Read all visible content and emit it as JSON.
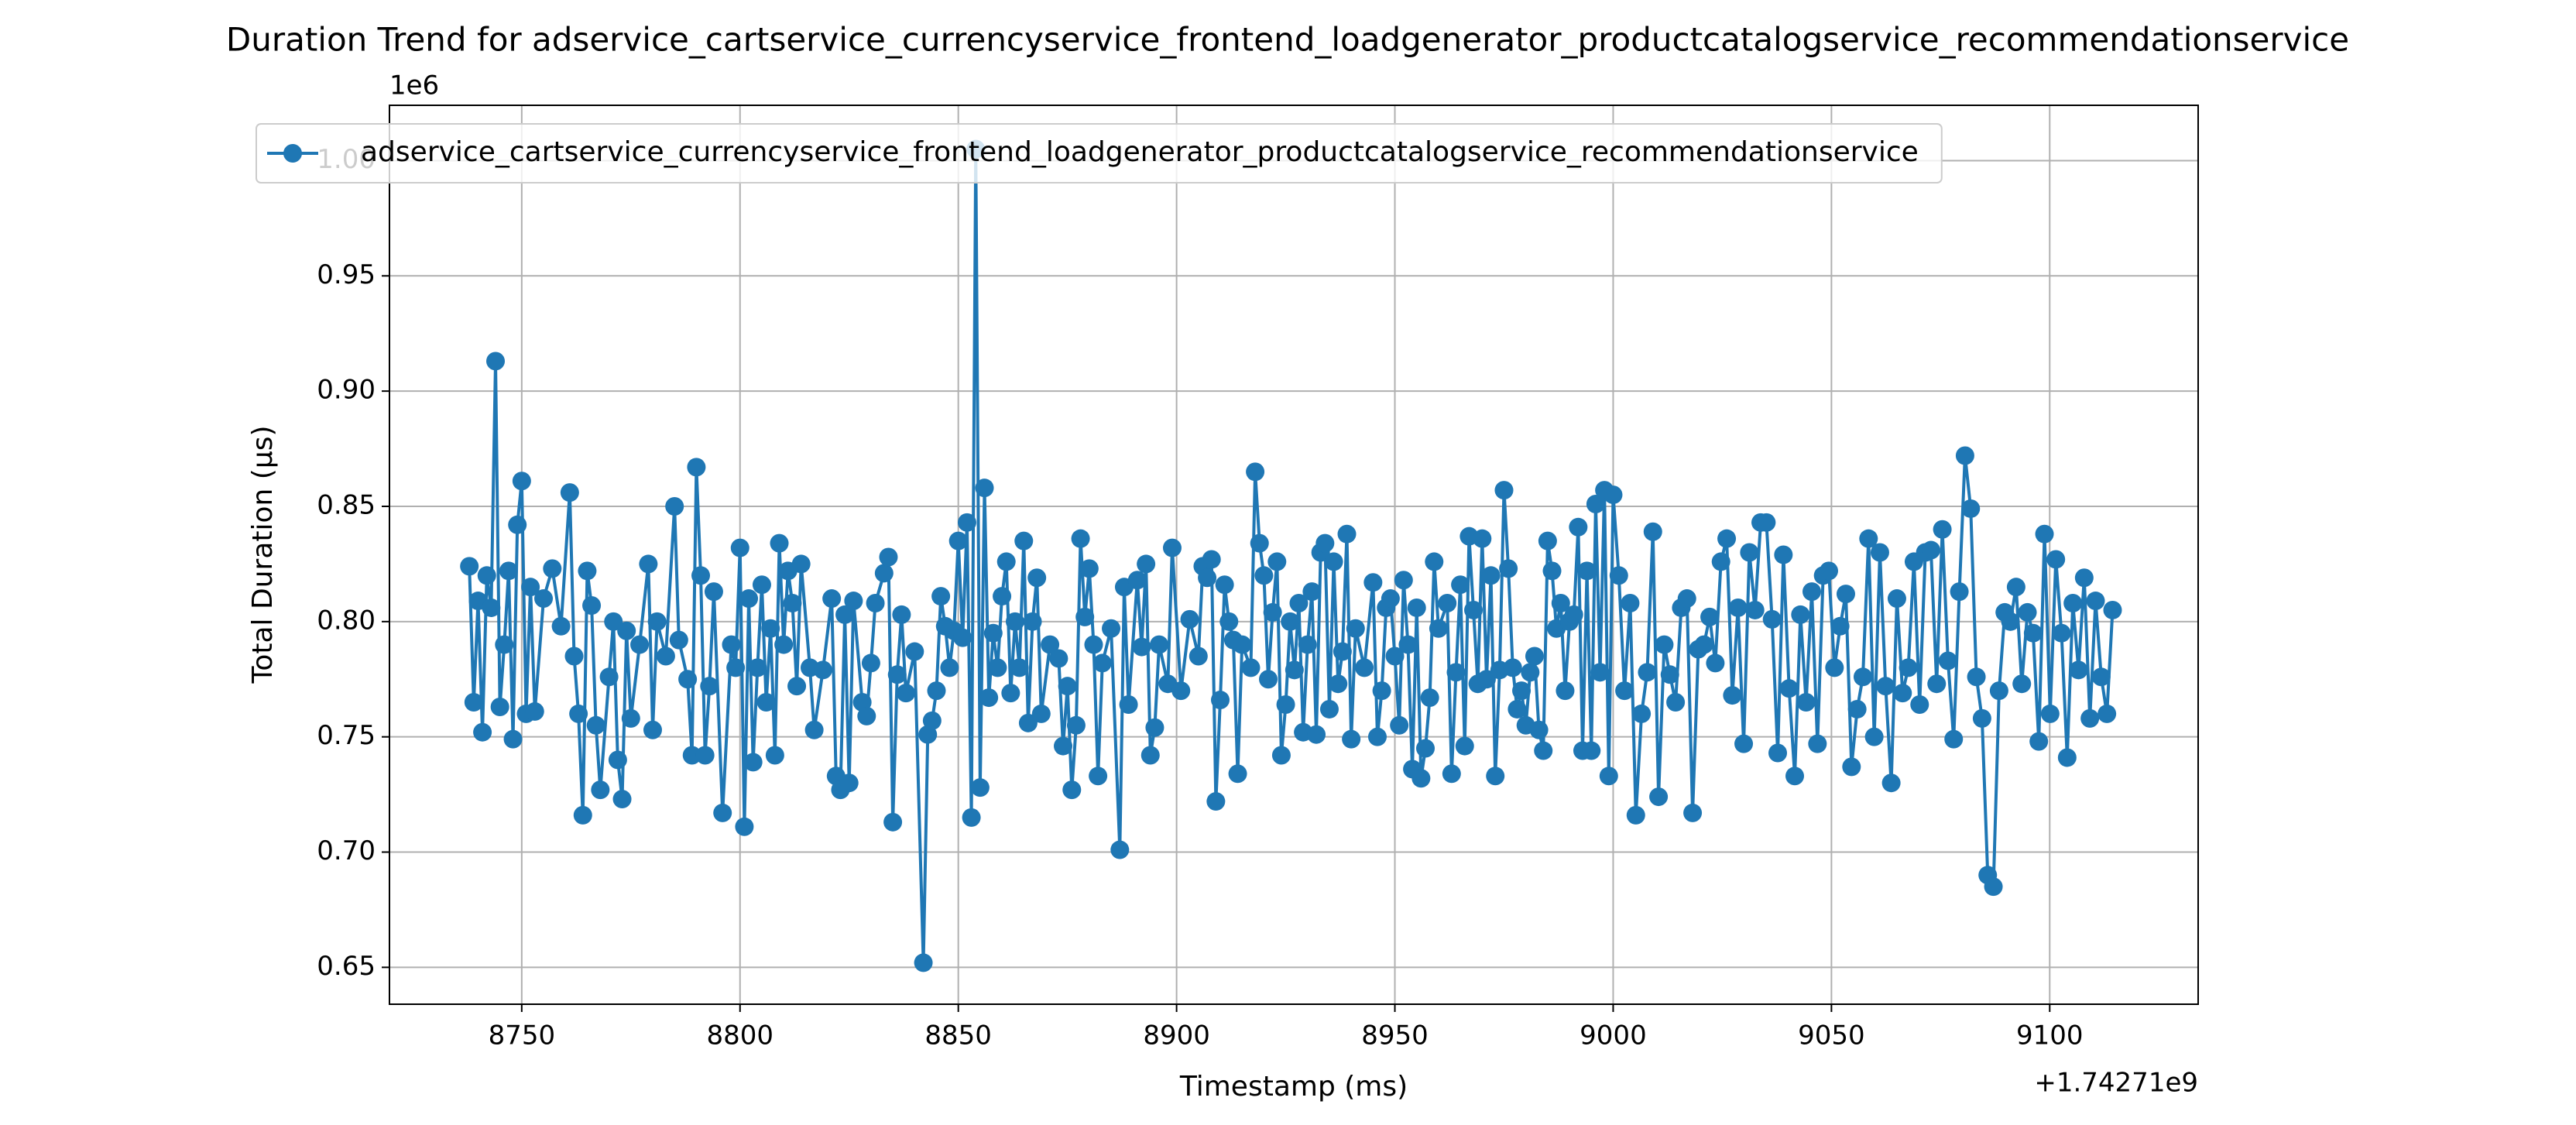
{
  "chart_data": {
    "type": "line",
    "title": "Duration Trend for adservice_cartservice_currencyservice_frontend_loadgenerator_productcatalogservice_recommendationservice",
    "xlabel": "Timestamp (ms)",
    "ylabel": "Total Duration (µs)",
    "x_offset_label": "+1.74271e9",
    "y_offset_label": "1e6",
    "xlim": [
      8719.7,
      9134
    ],
    "ylim": [
      0.634,
      1.024
    ],
    "xticks": [
      8750,
      8800,
      8850,
      8900,
      8950,
      9000,
      9050,
      9100
    ],
    "yticks": [
      0.65,
      {
        "value": 0.7,
        "label": "0.70"
      },
      0.75,
      {
        "value": 0.8,
        "label": "0.80"
      },
      0.85,
      {
        "value": 0.9,
        "label": "0.90"
      },
      0.95,
      {
        "value": 1,
        "label": "1.00"
      }
    ],
    "grid": true,
    "legend": "upper left",
    "x": [
      8738,
      8739,
      8740,
      8741,
      8742,
      8743,
      8744,
      8745,
      8746,
      8747,
      8748,
      8749,
      8750,
      8751,
      8752,
      8753,
      8755,
      8757,
      8759,
      8761,
      8762,
      8763,
      8764,
      8765,
      8766,
      8767,
      8768,
      8770,
      8771,
      8772,
      8773,
      8774,
      8775,
      8777,
      8779,
      8780,
      8781,
      8783,
      8785,
      8786,
      8788,
      8789,
      8790,
      8791,
      8792,
      8793,
      8794,
      8796,
      8798,
      8799,
      8800,
      8801,
      8802,
      8803,
      8804,
      8805,
      8806,
      8807,
      8808,
      8809,
      8810,
      8811,
      8812,
      8813,
      8814,
      8816,
      8817,
      8819,
      8821,
      8822,
      8823,
      8824,
      8825,
      8826,
      8828,
      8829,
      8830,
      8831,
      8833,
      8834,
      8835,
      8836,
      8837,
      8838,
      8840,
      8842,
      8843,
      8844,
      8845,
      8846,
      8847,
      8848,
      8849,
      8850,
      8851,
      8852,
      8853,
      8854,
      8855,
      8856,
      8857,
      8858,
      8859,
      8860,
      8861,
      8862,
      8863,
      8864,
      8865,
      8866,
      8867,
      8868,
      8869,
      8871,
      8873,
      8874,
      8875,
      8876,
      8877,
      8878,
      8879,
      8880,
      8881,
      8882,
      8883,
      8885,
      8887,
      8888,
      8889,
      8891,
      8892,
      8893,
      8894,
      8895,
      8896,
      8898,
      8899,
      8901,
      8903,
      8905,
      8906,
      8907,
      8908,
      8909,
      8910,
      8911,
      8912,
      8913,
      8914,
      8915,
      8917,
      8918,
      8919,
      8920,
      8921,
      8922,
      8923,
      8924,
      8925,
      8926,
      8927,
      8928,
      8929,
      8930,
      8931,
      8932,
      8933,
      8934,
      8935,
      8936,
      8937,
      8938,
      8939,
      8940,
      8941,
      8943,
      8945,
      8946,
      8947,
      8948,
      8949,
      8950,
      8951,
      8952,
      8953,
      8954,
      8955,
      8956,
      8957,
      8958,
      8959,
      8960,
      8962,
      8963,
      8964,
      8965,
      8966,
      8967,
      8968,
      8969,
      8970,
      8971,
      8972,
      8973,
      8974,
      8975,
      8976,
      8977,
      8978,
      8979,
      8980,
      8981,
      8982,
      8983,
      8984,
      8985,
      8986,
      8987,
      8988,
      8989,
      8990,
      8991,
      8992,
      8993,
      8994,
      8995,
      8996,
      8997,
      8998,
      8999,
      9000,
      9001.3,
      9002.6,
      9003.9,
      9005.2,
      9006.5,
      9007.8,
      9009.1,
      9010.4,
      9011.7,
      9013,
      9014.3,
      9015.6,
      9016.9,
      9018.2,
      9019.5,
      9020.8,
      9022.1,
      9023.4,
      9024.7,
      9026,
      9027.3,
      9028.6,
      9029.9,
      9031.2,
      9032.5,
      9033.8,
      9035.1,
      9036.4,
      9037.7,
      9039,
      9040.3,
      9041.6,
      9042.9,
      9044.2,
      9045.5,
      9046.8,
      9048.1,
      9049.4,
      9050.7,
      9052,
      9053.3,
      9054.6,
      9055.9,
      9057.2,
      9058.5,
      9059.8,
      9061.1,
      9062.4,
      9063.7,
      9065,
      9066.3,
      9067.6,
      9068.9,
      9070.2,
      9071.5,
      9072.8,
      9074.1,
      9075.4,
      9076.7,
      9078,
      9079.3,
      9080.6,
      9081.9,
      9083.2,
      9084.5,
      9085.8,
      9087.1,
      9088.4,
      9089.7,
      9091,
      9092.3,
      9093.6,
      9094.9,
      9096.2,
      9097.5,
      9098.8,
      9100.1,
      9101.4,
      9102.7,
      9104,
      9105.3,
      9106.6,
      9107.9,
      9109.2,
      9110.5,
      9111.8,
      9113.1,
      9114.4
    ],
    "series": [
      {
        "name": "adservice_cartservice_currencyservice_frontend_loadgenerator_productcatalogservice_recommendationservice",
        "color": "#1f77b4",
        "values": [
          0.824,
          0.765,
          0.809,
          0.752,
          0.82,
          0.806,
          0.913,
          0.763,
          0.79,
          0.822,
          0.749,
          0.842,
          0.861,
          0.76,
          0.815,
          0.761,
          0.81,
          0.823,
          0.798,
          0.856,
          0.785,
          0.76,
          0.716,
          0.822,
          0.807,
          0.755,
          0.727,
          0.776,
          0.8,
          0.74,
          0.723,
          0.796,
          0.758,
          0.79,
          0.825,
          0.753,
          0.8,
          0.785,
          0.85,
          0.792,
          0.775,
          0.742,
          0.867,
          0.82,
          0.742,
          0.772,
          0.813,
          0.717,
          0.79,
          0.78,
          0.832,
          0.711,
          0.81,
          0.739,
          0.78,
          0.816,
          0.765,
          0.797,
          0.742,
          0.834,
          0.79,
          0.822,
          0.808,
          0.772,
          0.825,
          0.78,
          0.753,
          0.779,
          0.81,
          0.733,
          0.727,
          0.803,
          0.73,
          0.809,
          0.765,
          0.759,
          0.782,
          0.808,
          0.821,
          0.828,
          0.713,
          0.777,
          0.803,
          0.769,
          0.787,
          0.652,
          0.751,
          0.757,
          0.77,
          0.811,
          0.798,
          0.78,
          0.796,
          0.835,
          0.793,
          0.843,
          0.715,
          1.005,
          0.728,
          0.858,
          0.767,
          0.795,
          0.78,
          0.811,
          0.826,
          0.769,
          0.8,
          0.78,
          0.835,
          0.756,
          0.8,
          0.819,
          0.76,
          0.79,
          0.784,
          0.746,
          0.772,
          0.727,
          0.755,
          0.836,
          0.802,
          0.823,
          0.79,
          0.733,
          0.782,
          0.797,
          0.701,
          0.815,
          0.764,
          0.818,
          0.789,
          0.825,
          0.742,
          0.754,
          0.79,
          0.773,
          0.832,
          0.77,
          0.801,
          0.785,
          0.824,
          0.819,
          0.827,
          0.722,
          0.766,
          0.816,
          0.8,
          0.792,
          0.734,
          0.79,
          0.78,
          0.865,
          0.834,
          0.82,
          0.775,
          0.804,
          0.826,
          0.742,
          0.764,
          0.8,
          0.779,
          0.808,
          0.752,
          0.79,
          0.813,
          0.751,
          0.83,
          0.834,
          0.762,
          0.826,
          0.773,
          0.787,
          0.838,
          0.749,
          0.797,
          0.78,
          0.817,
          0.75,
          0.77,
          0.806,
          0.81,
          0.785,
          0.755,
          0.818,
          0.79,
          0.736,
          0.806,
          0.732,
          0.745,
          0.767,
          0.826,
          0.797,
          0.808,
          0.734,
          0.778,
          0.816,
          0.746,
          0.837,
          0.805,
          0.773,
          0.836,
          0.775,
          0.82,
          0.733,
          0.779,
          0.857,
          0.823,
          0.78,
          0.762,
          0.77,
          0.755,
          0.778,
          0.785,
          0.753,
          0.744,
          0.835,
          0.822,
          0.797,
          0.808,
          0.77,
          0.8,
          0.803,
          0.841,
          0.744,
          0.822,
          0.744,
          0.851,
          0.778,
          0.857,
          0.733,
          0.855,
          0.82,
          0.77,
          0.808,
          0.716,
          0.76,
          0.778,
          0.839,
          0.724,
          0.79,
          0.777,
          0.765,
          0.806,
          0.81,
          0.717,
          0.788,
          0.79,
          0.802,
          0.782,
          0.826,
          0.836,
          0.768,
          0.806,
          0.747,
          0.83,
          0.805,
          0.843,
          0.843,
          0.801,
          0.743,
          0.829,
          0.771,
          0.733,
          0.803,
          0.765,
          0.813,
          0.747,
          0.82,
          0.822,
          0.78,
          0.798,
          0.812,
          0.737,
          0.762,
          0.776,
          0.836,
          0.75,
          0.83,
          0.772,
          0.73,
          0.81,
          0.769,
          0.78,
          0.826,
          0.764,
          0.83,
          0.831,
          0.773,
          0.84,
          0.783,
          0.749,
          0.813,
          0.872,
          0.849,
          0.776,
          0.758,
          0.69,
          0.685,
          0.77,
          0.804,
          0.8,
          0.815,
          0.773,
          0.804,
          0.795,
          0.748,
          0.838,
          0.76,
          0.827,
          0.795,
          0.741,
          0.808,
          0.779,
          0.819,
          0.758,
          0.809,
          0.776,
          0.76,
          0.805
        ]
      }
    ]
  }
}
